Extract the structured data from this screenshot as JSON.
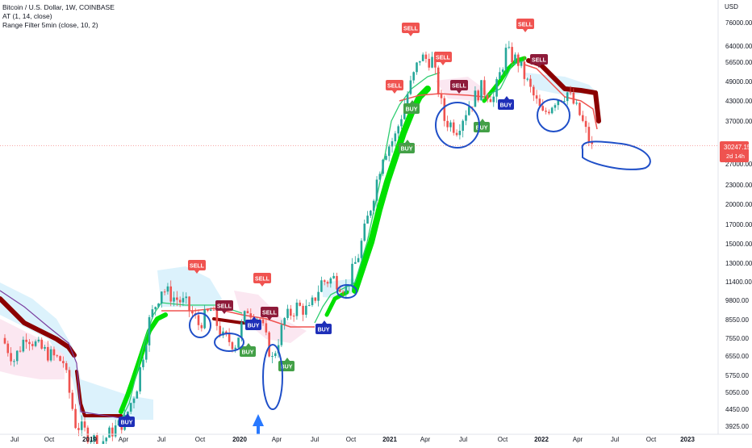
{
  "header": {
    "title_line": "Bitcoin / U.S. Dollar, 1W, COINBASE",
    "indicator_1": "AT (1, 14, close)",
    "indicator_2": "Range Filter 5min (close, 10, 2)"
  },
  "price_axis": {
    "currency": "USD",
    "ticks": [
      "76000.00",
      "64000.00",
      "56500.00",
      "49000.00",
      "43000.00",
      "37000.00",
      "27000.00",
      "23000.00",
      "20000.00",
      "17000.00",
      "15000.00",
      "13000.00",
      "11400.00",
      "9800.00",
      "8550.00",
      "7550.00",
      "6550.00",
      "5750.00",
      "5050.00",
      "4450.00",
      "3925.00"
    ],
    "current_price": "30247.15",
    "countdown": "2d 14h"
  },
  "time_axis": {
    "labels": [
      "Jul",
      "Oct",
      "2019",
      "Apr",
      "Jul",
      "Oct",
      "2020",
      "Apr",
      "Jul",
      "Oct",
      "2021",
      "Apr",
      "Jul",
      "Oct",
      "2022",
      "Apr",
      "Jul",
      "Oct",
      "2023"
    ]
  },
  "colors": {
    "up_candle": "#26a69a",
    "down_candle": "#ef5350",
    "sell_label": "#f05350",
    "sell_dark": "#8e1b3a",
    "buy_green": "#43a047",
    "buy_blue": "#1e2fb8",
    "trail_green": "#00e000",
    "trail_red": "#8b0000",
    "cloud_blue": "#d6f0fb",
    "cloud_pink": "#fbe4ef",
    "annotation": "#1f4fc8"
  },
  "signals": {
    "sell": "SELL",
    "buy": "BUY"
  },
  "chart_data": {
    "type": "candlestick",
    "title": "Bitcoin / U.S. Dollar, 1W, COINBASE",
    "x": [
      "2018-05",
      "2018-06",
      "2018-07",
      "2018-08",
      "2018-09",
      "2018-10",
      "2018-11",
      "2018-12",
      "2019-01",
      "2019-02",
      "2019-03",
      "2019-04",
      "2019-05",
      "2019-06",
      "2019-07",
      "2019-08",
      "2019-09",
      "2019-10",
      "2019-11",
      "2019-12",
      "2020-01",
      "2020-02",
      "2020-03",
      "2020-04",
      "2020-05",
      "2020-06",
      "2020-07",
      "2020-08",
      "2020-09",
      "2020-10",
      "2020-11",
      "2020-12",
      "2021-01",
      "2021-02",
      "2021-03",
      "2021-04",
      "2021-05",
      "2021-06",
      "2021-07",
      "2021-08",
      "2021-09",
      "2021-10",
      "2021-11",
      "2021-12",
      "2022-01",
      "2022-02",
      "2022-03",
      "2022-04",
      "2022-05"
    ],
    "close_approx": [
      7500,
      6400,
      7700,
      7000,
      6600,
      6300,
      4000,
      3700,
      3450,
      3800,
      4100,
      5300,
      8500,
      10800,
      10100,
      9600,
      8300,
      9200,
      7500,
      7200,
      9300,
      8600,
      6400,
      8600,
      9450,
      9150,
      11300,
      11600,
      10800,
      13800,
      19700,
      29000,
      33000,
      45000,
      58800,
      57700,
      37300,
      35000,
      41500,
      47000,
      43800,
      61300,
      57000,
      46300,
      38500,
      43200,
      45500,
      38600,
      30247
    ],
    "series": [
      {
        "name": "AT (1, 14, close)",
        "values": [
          7000,
          7000,
          6900,
          6800,
          6700,
          6600,
          5000,
          4000,
          3600,
          3600,
          3800,
          4200,
          5500,
          8500,
          9200,
          9200,
          8600,
          8600,
          8600,
          8200,
          8500,
          8500,
          7200,
          7300,
          8100,
          8600,
          9200,
          10500,
          10500,
          11400,
          15000,
          22000,
          29000,
          36000,
          44000,
          44000,
          44000,
          44000,
          44000,
          44000,
          44000,
          44000,
          56000,
          56000,
          49000,
          43000,
          43000,
          43000,
          43000
        ]
      },
      {
        "name": "Range Filter 5min (close, 10, 2)",
        "values": [
          7500,
          7400,
          7300,
          7100,
          6900,
          6700,
          6300,
          3600,
          3600,
          3600,
          3700,
          4500,
          7000,
          9200,
          9200,
          9200,
          9200,
          9200,
          9200,
          9200,
          9000,
          8600,
          8600,
          8000,
          8600,
          9000,
          9500,
          11200,
          11200,
          11500,
          17000,
          28000,
          35000,
          45000,
          45000,
          45000,
          45000,
          38000,
          38000,
          40000,
          43000,
          46000,
          58000,
          56000,
          46000,
          43000,
          43000,
          43000,
          37000
        ]
      }
    ],
    "signals": [
      {
        "label": "SELL",
        "x": "2019-06"
      },
      {
        "label": "SELL",
        "x": "2019-12"
      },
      {
        "label": "BUY",
        "x": "2020-01"
      },
      {
        "label": "BUY",
        "x": "2020-01"
      },
      {
        "label": "SELL",
        "x": "2020-02"
      },
      {
        "label": "SELL",
        "x": "2020-03"
      },
      {
        "label": "BUY",
        "x": "2020-04"
      },
      {
        "label": "BUY",
        "x": "2020-08"
      },
      {
        "label": "BUY",
        "x": "2018-12"
      },
      {
        "label": "SELL",
        "x": "2021-02"
      },
      {
        "label": "SELL",
        "x": "2021-03"
      },
      {
        "label": "SELL",
        "x": "2021-04"
      },
      {
        "label": "SELL",
        "x": "2021-05"
      },
      {
        "label": "BUY",
        "x": "2021-03"
      },
      {
        "label": "BUY",
        "x": "2021-07"
      },
      {
        "label": "BUY",
        "x": "2021-10"
      },
      {
        "label": "SELL",
        "x": "2021-11"
      },
      {
        "label": "SELL",
        "x": "2021-12"
      }
    ],
    "yscale": "log",
    "ylim": [
      3900,
      80000
    ],
    "ylabel": "USD",
    "grid": false,
    "legend": "top-left"
  }
}
